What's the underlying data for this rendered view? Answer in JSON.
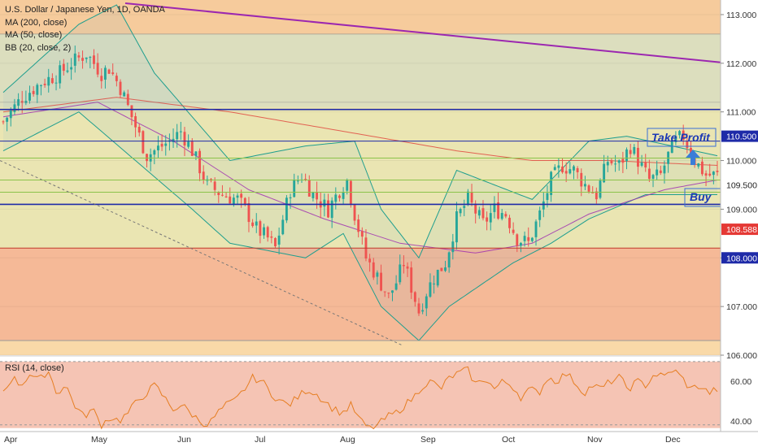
{
  "legend": {
    "title": "U.S. Dollar / Japanese Yen, 1D, OANDA",
    "ma200": "MA (200, close)",
    "ma50": "MA (50, close)",
    "bb": "BB (20, close, 2)"
  },
  "rsi_label": "RSI (14, close)",
  "annotations": {
    "take_profit": "Take Profit",
    "buy": "Buy"
  },
  "colors": {
    "up_candle": "#26a69a",
    "down_candle": "#ef5350",
    "ma200": "#e0413a",
    "ma50": "#9c27b0",
    "bb_band": "#1e9e8e",
    "trendline": "#9c27b0",
    "level_line": "#1e2aa8",
    "annotation_text": "#1d3ab5",
    "zone_top": "#f6c89a",
    "zone_mid": "#e7e6b4",
    "zone_low": "#f4b394",
    "rsi_bg": "#f5c4b4"
  },
  "chart_data": [
    {
      "type": "candlestick",
      "title": "U.S. Dollar / Japanese Yen, 1D, OANDA",
      "x_tick_labels": [
        "Apr",
        "May",
        "Jun",
        "Jul",
        "Aug",
        "Sep",
        "Oct",
        "Nov",
        "Dec"
      ],
      "y_tick_labels": [
        "106.000",
        "107.000",
        "108.000",
        "109.000",
        "110.000",
        "111.000",
        "112.000",
        "113.000"
      ],
      "y_range": [
        106.0,
        113.3
      ],
      "price_labels": [
        {
          "label": "110.500",
          "value": 110.5
        },
        {
          "label": "109.500",
          "value": 109.5
        },
        {
          "label": "108.588",
          "value": 108.588
        },
        {
          "label": "108.000",
          "value": 108.0
        }
      ],
      "horizontal_levels": [
        111.05,
        109.1,
        110.4
      ],
      "zones": [
        {
          "name": "upper",
          "from": 112.6,
          "to": 113.3
        },
        {
          "name": "middle",
          "from": 108.2,
          "to": 112.6
        },
        {
          "name": "lower",
          "from": 106.3,
          "to": 108.2
        }
      ],
      "trendline": {
        "from": [
          0,
          113.3
        ],
        "to": [
          189,
          111.95
        ]
      },
      "close_path": [
        [
          0,
          110.8
        ],
        [
          5,
          111.3
        ],
        [
          10,
          111.6
        ],
        [
          15,
          111.8
        ],
        [
          18,
          112.0
        ],
        [
          22,
          112.2
        ],
        [
          26,
          111.8
        ],
        [
          28,
          111.9
        ],
        [
          31,
          111.5
        ],
        [
          34,
          110.9
        ],
        [
          38,
          110.1
        ],
        [
          42,
          110.3
        ],
        [
          44,
          110.4
        ],
        [
          47,
          110.6
        ],
        [
          50,
          110.2
        ],
        [
          54,
          109.5
        ],
        [
          58,
          109.3
        ],
        [
          62,
          109.2
        ],
        [
          64,
          109.0
        ],
        [
          67,
          108.6
        ],
        [
          70,
          108.4
        ],
        [
          72,
          108.2
        ],
        [
          74,
          108.8
        ],
        [
          76,
          109.4
        ],
        [
          79,
          109.7
        ],
        [
          82,
          109.3
        ],
        [
          86,
          109.0
        ],
        [
          89,
          109.4
        ],
        [
          91,
          109.6
        ],
        [
          93,
          108.9
        ],
        [
          96,
          108.0
        ],
        [
          99,
          107.6
        ],
        [
          102,
          107.2
        ],
        [
          104,
          107.5
        ],
        [
          106,
          107.9
        ],
        [
          108,
          107.4
        ],
        [
          110,
          106.9
        ],
        [
          112,
          107.3
        ],
        [
          114,
          107.6
        ],
        [
          117,
          107.9
        ],
        [
          120,
          108.8
        ],
        [
          123,
          109.2
        ],
        [
          127,
          108.7
        ],
        [
          130,
          109.0
        ],
        [
          133,
          108.9
        ],
        [
          136,
          108.4
        ],
        [
          139,
          108.3
        ],
        [
          142,
          108.9
        ],
        [
          145,
          109.6
        ],
        [
          148,
          109.9
        ],
        [
          151,
          109.8
        ],
        [
          154,
          109.5
        ],
        [
          157,
          109.3
        ],
        [
          160,
          110.0
        ],
        [
          163,
          109.9
        ],
        [
          166,
          110.3
        ],
        [
          168,
          110.0
        ],
        [
          171,
          109.6
        ],
        [
          174,
          109.7
        ],
        [
          176,
          110.1
        ],
        [
          178,
          110.4
        ],
        [
          180,
          110.5
        ],
        [
          183,
          110.0
        ],
        [
          186,
          109.7
        ],
        [
          189,
          109.7
        ]
      ],
      "ma200_path": [
        [
          0,
          111.0
        ],
        [
          30,
          111.3
        ],
        [
          60,
          111.0
        ],
        [
          90,
          110.6
        ],
        [
          120,
          110.2
        ],
        [
          140,
          110.0
        ],
        [
          160,
          110.0
        ],
        [
          189,
          109.9
        ]
      ],
      "ma50_path": [
        [
          0,
          110.9
        ],
        [
          25,
          111.2
        ],
        [
          45,
          110.4
        ],
        [
          65,
          109.4
        ],
        [
          85,
          108.8
        ],
        [
          105,
          108.3
        ],
        [
          125,
          108.1
        ],
        [
          140,
          108.3
        ],
        [
          155,
          108.9
        ],
        [
          175,
          109.4
        ],
        [
          189,
          109.6
        ]
      ],
      "bb_upper_path": [
        [
          0,
          111.4
        ],
        [
          20,
          112.8
        ],
        [
          30,
          113.2
        ],
        [
          40,
          111.8
        ],
        [
          60,
          110.0
        ],
        [
          80,
          110.3
        ],
        [
          93,
          110.4
        ],
        [
          100,
          109.0
        ],
        [
          110,
          108.0
        ],
        [
          120,
          109.8
        ],
        [
          140,
          109.2
        ],
        [
          155,
          110.4
        ],
        [
          165,
          110.5
        ],
        [
          189,
          110.1
        ]
      ],
      "bb_lower_path": [
        [
          0,
          110.2
        ],
        [
          20,
          111.0
        ],
        [
          35,
          110.0
        ],
        [
          50,
          109.0
        ],
        [
          60,
          108.3
        ],
        [
          80,
          108.0
        ],
        [
          90,
          108.5
        ],
        [
          100,
          107.0
        ],
        [
          110,
          106.3
        ],
        [
          118,
          107.0
        ],
        [
          135,
          107.9
        ],
        [
          145,
          108.3
        ],
        [
          155,
          108.8
        ],
        [
          170,
          109.3
        ],
        [
          189,
          109.3
        ]
      ]
    },
    {
      "type": "line",
      "title": "RSI (14, close)",
      "y_tick_labels": [
        "40.00",
        "60.00"
      ],
      "y_range": [
        35,
        72
      ],
      "levels": [
        70,
        30
      ],
      "values": [
        55,
        62,
        58,
        64,
        60,
        66,
        54,
        58,
        48,
        42,
        46,
        38,
        42,
        40,
        44,
        50,
        54,
        58,
        52,
        46,
        48,
        44,
        40,
        38,
        44,
        48,
        50,
        56,
        62,
        60,
        54,
        50,
        48,
        52,
        56,
        54,
        50,
        46,
        44,
        48,
        40,
        36,
        38,
        42,
        44,
        48,
        52,
        58,
        60,
        56,
        62,
        64,
        66,
        58,
        62,
        56,
        60,
        58,
        52,
        56,
        54,
        62,
        60,
        64,
        60,
        54,
        58,
        56,
        60,
        62,
        56,
        60,
        58,
        64,
        62,
        66,
        62,
        56,
        58,
        54,
        56
      ]
    }
  ]
}
